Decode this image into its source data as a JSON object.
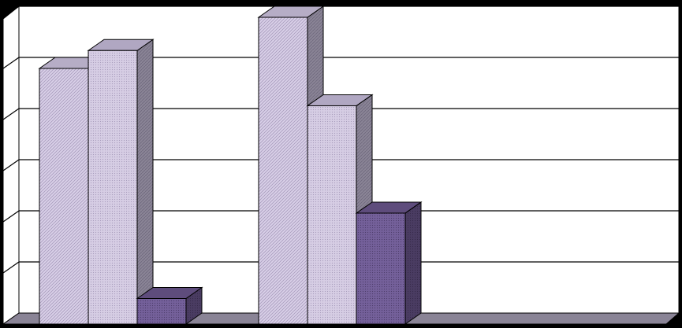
{
  "chart_data": {
    "type": "bar",
    "style": "3d-clustered-column",
    "title": "",
    "xlabel": "",
    "ylabel": "",
    "categories": [
      "",
      "",
      ""
    ],
    "series": [
      {
        "color": "#d8cfe6",
        "pattern": "diagonal-hatch",
        "values": [
          5.0,
          6.0,
          null
        ]
      },
      {
        "color": "#d0c8e0",
        "pattern": "fine-dots",
        "values": [
          5.35,
          4.27,
          null
        ]
      },
      {
        "color": "#6e5a8c",
        "pattern": "fine-dots",
        "values": [
          0.5,
          2.17,
          null
        ]
      }
    ],
    "ylim": [
      0,
      6.2
    ],
    "y_gridlines": [
      1,
      2,
      3,
      4,
      5,
      6
    ],
    "grid": true,
    "legend": "none",
    "background_color": "#000000",
    "plot_area_color": "#ffffff",
    "gridline_color": "#000000"
  }
}
